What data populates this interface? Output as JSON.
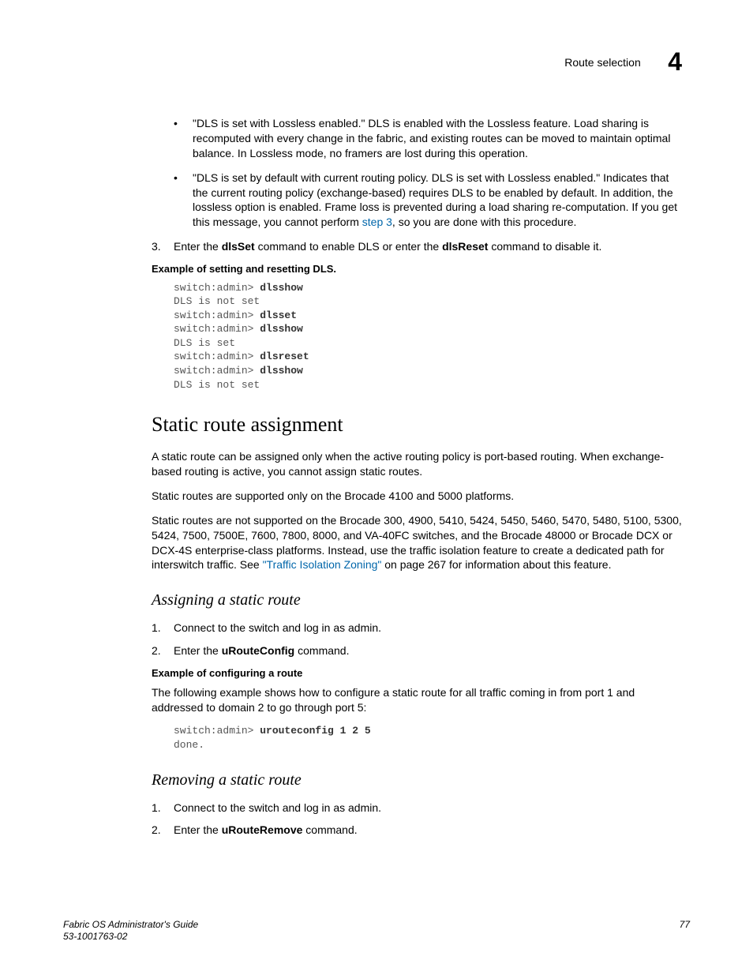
{
  "header": {
    "title": "Route selection",
    "chapter": "4"
  },
  "bullets": [
    "\"DLS is set with Lossless enabled.\" DLS is enabled with the Lossless feature. Load sharing is recomputed with every change in the fabric, and existing routes can be moved to maintain optimal balance. In Lossless mode, no framers are lost during this operation.",
    "\"DLS is set by default with current routing policy. DLS is set with Lossless enabled.\" Indicates that the current routing policy (exchange-based) requires DLS to be enabled by default. In addition, the lossless option is enabled. Frame loss is prevented during a load sharing re-computation. If you get this message, you cannot perform "
  ],
  "bullet2_link": "step 3",
  "bullet2_tail": ", so you are done with this procedure.",
  "step3": {
    "num": "3.",
    "pre": "Enter the ",
    "cmd1": "dlsSet",
    "mid": " command to enable DLS or enter the ",
    "cmd2": "dlsReset",
    "post": " command to disable it."
  },
  "example1_label": "Example  of setting and resetting DLS.",
  "code1": {
    "l1a": "switch:admin> ",
    "l1b": "dlsshow",
    "l2": "DLS is not set",
    "l3a": "switch:admin> ",
    "l3b": "dlsset",
    "l4a": "switch:admin> ",
    "l4b": "dlsshow",
    "l5": "DLS is set",
    "l6a": "switch:admin> ",
    "l6b": "dlsreset",
    "l7a": "switch:admin> ",
    "l7b": "dlsshow",
    "l8": "DLS is not set"
  },
  "h2": "Static route assignment",
  "p1": "A static route can be assigned only when the active routing policy is port-based routing. When exchange-based routing is active, you cannot assign static routes.",
  "p2": "Static routes are supported only on the Brocade 4100 and 5000 platforms.",
  "p3a": "Static routes are not supported on the Brocade 300, 4900, 5410, 5424, 5450, 5460, 5470, 5480, 5100, 5300, 5424, 7500, 7500E, 7600, 7800, 8000, and VA-40FC switches, and the Brocade 48000 or Brocade DCX or DCX-4S enterprise-class platforms. Instead, use the traffic isolation feature to create a dedicated path for interswitch traffic. See ",
  "p3link": "\"Traffic Isolation Zoning\"",
  "p3b": " on page 267 for information about this feature.",
  "h3a": "Assigning a static route",
  "assign_steps": {
    "s1": {
      "num": "1.",
      "text": "Connect to the switch and log in as admin."
    },
    "s2": {
      "num": "2.",
      "pre": "Enter the ",
      "cmd": "uRouteConfig",
      "post": " command."
    }
  },
  "example2_label": "Example  of configuring a route",
  "p4": "The following example shows how to configure a static route for all traffic coming in from port 1 and addressed to domain 2 to go through port 5:",
  "code2": {
    "l1a": "switch:admin> ",
    "l1b": "urouteconfig 1 2 5",
    "l2": "done."
  },
  "h3b": "Removing a static route",
  "remove_steps": {
    "s1": {
      "num": "1.",
      "text": "Connect to the switch and log in as admin."
    },
    "s2": {
      "num": "2.",
      "pre": "Enter the ",
      "cmd": "uRouteRemove",
      "post": " command."
    }
  },
  "footer": {
    "line1": "Fabric OS Administrator's Guide",
    "line2": "53-1001763-02",
    "page": "77"
  }
}
